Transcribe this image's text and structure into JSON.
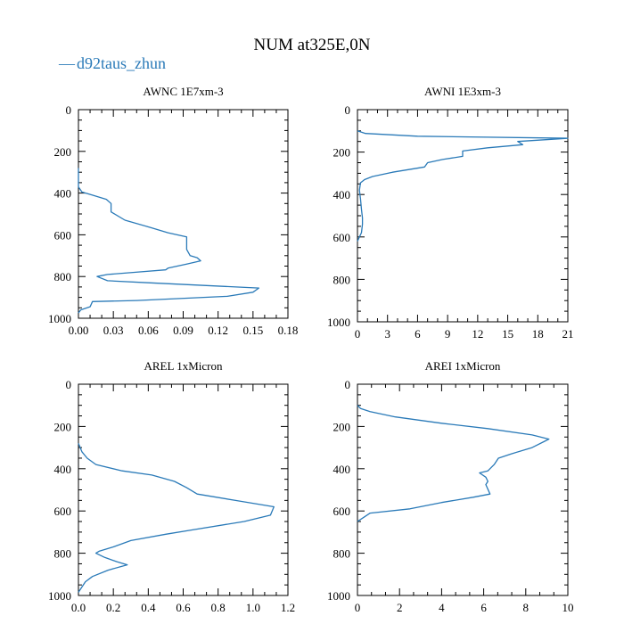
{
  "title": "NUM at325E,0N",
  "legend": {
    "marker": "—",
    "label": "d92taus_zhun",
    "color": "#2a7ab8"
  },
  "chart_data": [
    {
      "type": "line",
      "title": "AWNC  1E7xm-3",
      "xlim": [
        0,
        0.18
      ],
      "ylim": [
        1000,
        0
      ],
      "x_ticks": [
        "0.00",
        "0.03",
        "0.06",
        "0.09",
        "0.12",
        "0.15",
        "0.18"
      ],
      "y_ticks": [
        "0",
        "200",
        "400",
        "600",
        "800",
        "1000"
      ],
      "series": [
        {
          "name": "d92taus_zhun",
          "x": [
            0,
            0,
            0,
            0.003,
            0.012,
            0.024,
            0.028,
            0.028,
            0.04,
            0.062,
            0.077,
            0.093,
            0.093,
            0.096,
            0.102,
            0.105,
            0.093,
            0.077,
            0.075,
            0.048,
            0.025,
            0.016,
            0.025,
            0.06,
            0.155,
            0.15,
            0.128,
            0.05,
            0.012,
            0.01,
            0.002,
            0
          ],
          "y": [
            280,
            320,
            370,
            395,
            410,
            430,
            450,
            490,
            530,
            565,
            590,
            610,
            670,
            700,
            710,
            725,
            740,
            760,
            768,
            780,
            790,
            800,
            820,
            830,
            855,
            875,
            895,
            915,
            920,
            945,
            960,
            975
          ]
        }
      ]
    },
    {
      "type": "line",
      "title": "AWNI  1E3xm-3",
      "xlim": [
        0,
        21
      ],
      "ylim": [
        1000,
        0
      ],
      "x_ticks": [
        "0",
        "3",
        "6",
        "9",
        "12",
        "15",
        "18",
        "21"
      ],
      "y_ticks": [
        "0",
        "200",
        "400",
        "600",
        "800",
        "1000"
      ],
      "series": [
        {
          "name": "d92taus_zhun",
          "x": [
            0,
            0.8,
            6,
            21,
            16,
            16.5,
            13,
            10.5,
            10.5,
            8.5,
            7,
            6.7,
            3.5,
            1.5,
            0.7,
            0.3,
            0.2,
            0.3,
            0.4,
            0.5,
            0.5,
            0.4,
            0.2,
            0
          ],
          "y": [
            100,
            112,
            125,
            135,
            150,
            165,
            180,
            195,
            220,
            235,
            250,
            270,
            295,
            315,
            330,
            345,
            380,
            420,
            470,
            510,
            540,
            580,
            600,
            620
          ]
        }
      ]
    },
    {
      "type": "line",
      "title": "AREL  1xMicron",
      "xlim": [
        0,
        1.2
      ],
      "ylim": [
        1000,
        0
      ],
      "x_ticks": [
        "0.0",
        "0.2",
        "0.4",
        "0.6",
        "0.8",
        "1.0",
        "1.2"
      ],
      "y_ticks": [
        "0",
        "200",
        "400",
        "600",
        "800",
        "1000"
      ],
      "series": [
        {
          "name": "d92taus_zhun",
          "x": [
            0,
            0.02,
            0.05,
            0.1,
            0.25,
            0.42,
            0.55,
            0.62,
            0.68,
            0.9,
            1.12,
            1.1,
            0.95,
            0.65,
            0.5,
            0.3,
            0.2,
            0.12,
            0.1,
            0.15,
            0.22,
            0.28,
            0.17,
            0.08,
            0.04,
            0.02,
            0
          ],
          "y": [
            280,
            320,
            350,
            380,
            410,
            430,
            460,
            490,
            520,
            550,
            580,
            620,
            650,
            690,
            710,
            740,
            770,
            790,
            800,
            820,
            840,
            855,
            880,
            910,
            935,
            960,
            985
          ]
        }
      ]
    },
    {
      "type": "line",
      "title": "AREI  1xMicron",
      "xlim": [
        0,
        10
      ],
      "ylim": [
        1000,
        0
      ],
      "x_ticks": [
        "0",
        "2",
        "4",
        "6",
        "8",
        "10"
      ],
      "y_ticks": [
        "0",
        "200",
        "400",
        "600",
        "800",
        "1000"
      ],
      "series": [
        {
          "name": "d92taus_zhun",
          "x": [
            0,
            0.15,
            0.6,
            1.8,
            4,
            6.2,
            8.3,
            9.1,
            8.9,
            8.3,
            7.3,
            6.7,
            6.5,
            6.2,
            5.8,
            6.1,
            6.2,
            6.1,
            6.3,
            5.5,
            4,
            2.5,
            0.6,
            0.3,
            0
          ],
          "y": [
            100,
            115,
            130,
            155,
            185,
            210,
            240,
            260,
            270,
            300,
            330,
            350,
            380,
            410,
            420,
            440,
            460,
            475,
            520,
            535,
            560,
            590,
            610,
            630,
            650
          ]
        }
      ]
    }
  ]
}
